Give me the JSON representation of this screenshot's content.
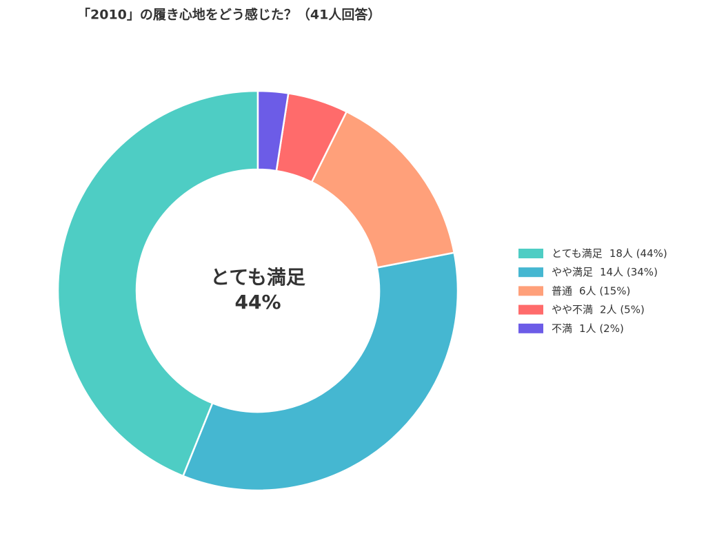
{
  "chart_data": {
    "type": "donut",
    "title": "「2010」の履き心地をどう感じた？（41人回答）",
    "categories": [
      "とても満足",
      "やや満足",
      "普通",
      "やや不満",
      "不満"
    ],
    "values": [
      18,
      14,
      6,
      2,
      1
    ],
    "value_labels": [
      "18人 (44%)",
      "14人 (34%)",
      "6人 (15%)",
      "2人 (5%)",
      "1人 (2%)"
    ],
    "colors": [
      "#4ecdc4",
      "#45b7d1",
      "#ffa07a",
      "#ff6b6b",
      "#6c5ce7"
    ],
    "counterclock": true,
    "center_label": [
      "とても満足",
      "44%"
    ],
    "legend": "right"
  }
}
